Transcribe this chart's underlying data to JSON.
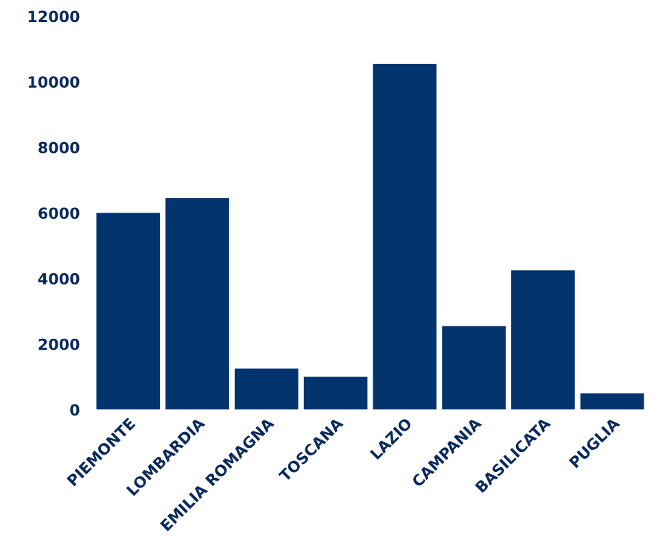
{
  "chart_data": {
    "type": "bar",
    "categories": [
      "PIEMONTE",
      "LOMBARDIA",
      "EMILIA ROMAGNA",
      "TOSCANA",
      "LAZIO",
      "CAMPANIA",
      "BASILICATA",
      "PUGLIA"
    ],
    "values": [
      6000,
      6450,
      1250,
      1000,
      10550,
      2550,
      4250,
      500
    ],
    "color": "#03346e",
    "ylim": [
      0,
      12000
    ],
    "yticks": [
      0,
      2000,
      4000,
      6000,
      8000,
      10000,
      12000
    ],
    "grid": false,
    "legend": false
  }
}
